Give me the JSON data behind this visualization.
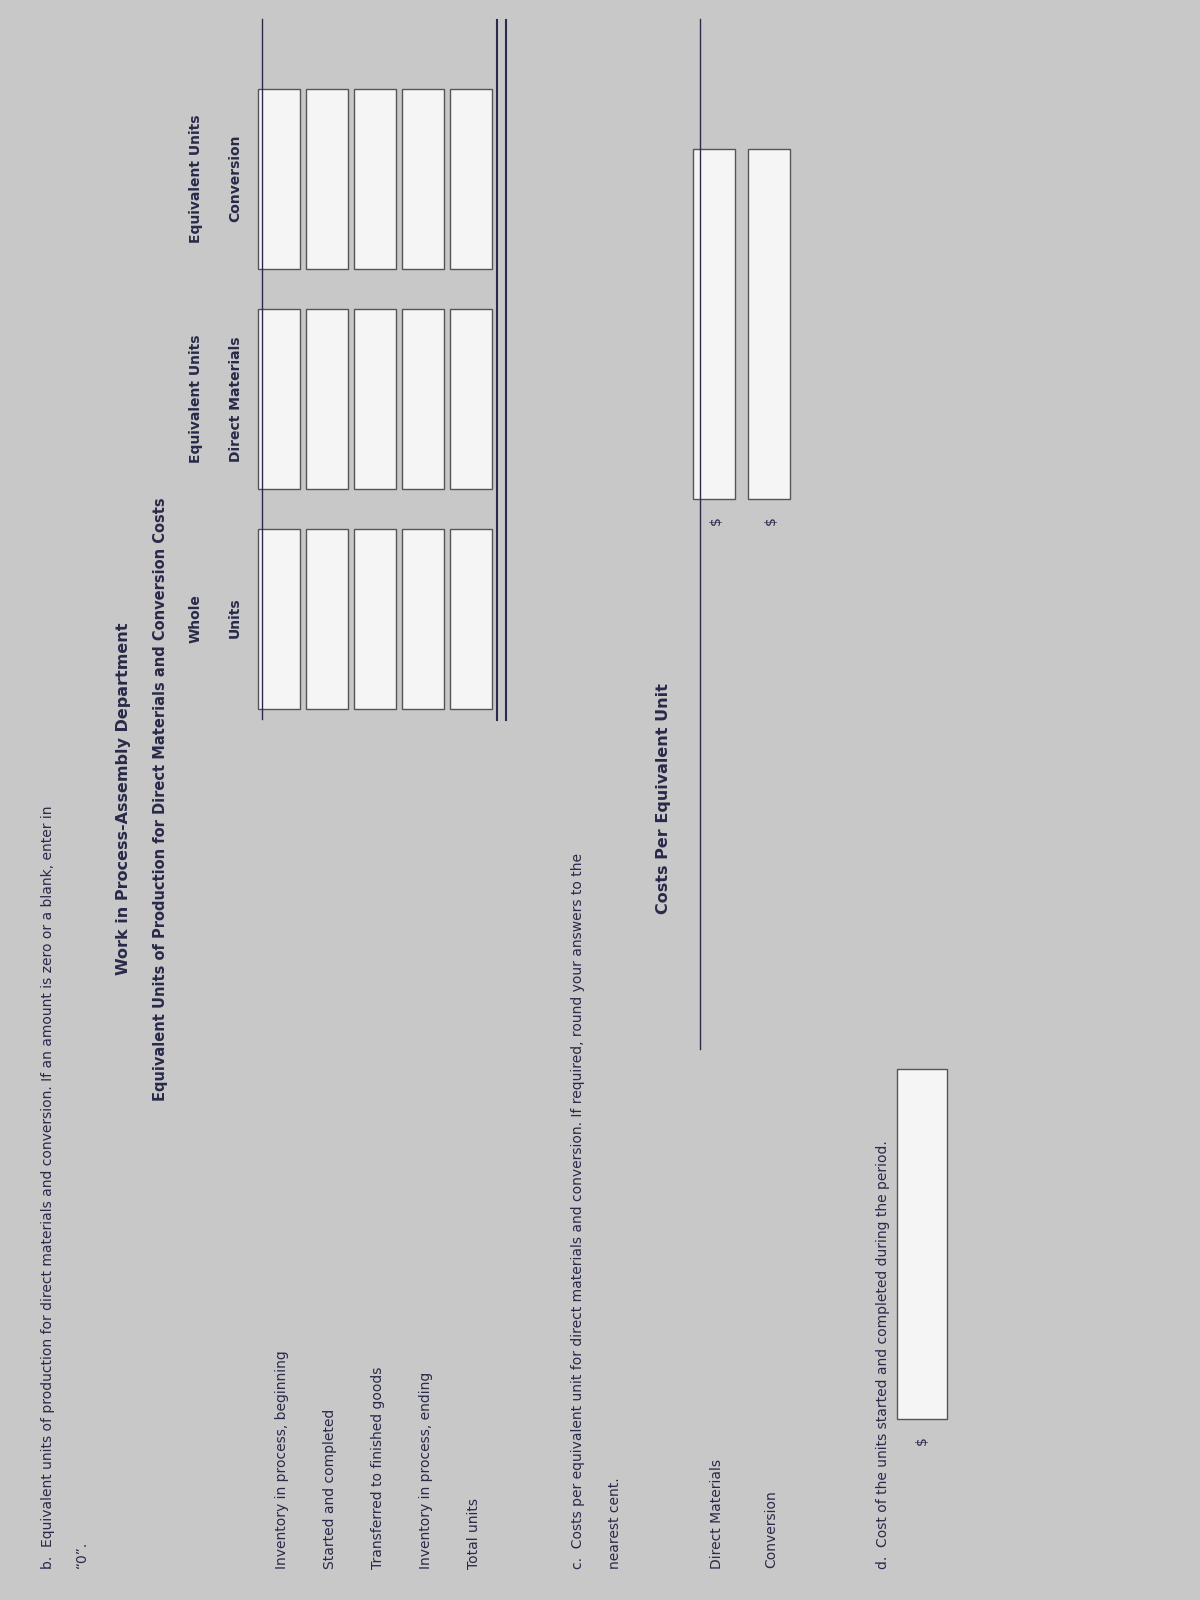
{
  "bg_color": "#c8c8c8",
  "title_b": "b.  Equivalent units of production for direct materials and conversion. If an amount is zero or a blank, enter in",
  "title_b2": "“0”.",
  "section_b_title1": "Work in Process-Assembly Department",
  "section_b_title2": "Equivalent Units of Production for Direct Materials and Conversion Costs",
  "col_headers_line1": [
    "Whole",
    "Equivalent Units",
    "Equivalent Units"
  ],
  "col_headers_line2": [
    "Units",
    "Direct Materials",
    "Conversion"
  ],
  "row_labels": [
    "Inventory in process, beginning",
    "Started and completed",
    "Transferred to finished goods",
    "Inventory in process, ending",
    "Total units"
  ],
  "section_c_title1": "c.  Costs per equivalent unit for direct materials and conversion. If required, round your answers to the",
  "section_c_title2": "nearest cent.",
  "costs_header": "Costs Per Equivalent Unit",
  "cost_rows": [
    "Direct Materials",
    "Conversion"
  ],
  "section_d_title": "d.  Cost of the units started and completed during the period.",
  "box_fill": "#f5f5f5",
  "box_edge": "#555555",
  "text_color": "#2a2a4a",
  "rotation": 90
}
